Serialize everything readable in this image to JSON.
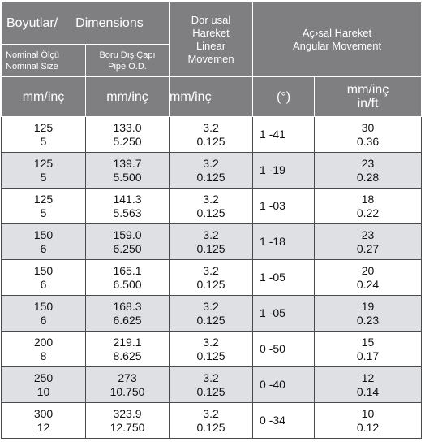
{
  "header": {
    "boyutlar": "Boyutlar/",
    "dimensions": "Dimensions",
    "nominal_tr": "Nominal Ölçü",
    "nominal_en": "Nominal Size",
    "pipe_tr": "Boru Dış Çapı",
    "pipe_en": "Pipe O.D.",
    "linear_1": "Dor usal",
    "linear_2": "Hareket",
    "linear_3": "Linear",
    "linear_4": "Movemen",
    "angular_tr": "Aç›sal Hareket",
    "angular_en": "Angular Movement",
    "units": [
      "mm/inç",
      "mm/inç",
      "mm/inç",
      "(°)"
    ],
    "unit_last_1": "mm/inç",
    "unit_last_2": "in/ft"
  },
  "rows": [
    {
      "nominal": [
        "125",
        "5"
      ],
      "od": [
        "133.0",
        "5.250"
      ],
      "linear": [
        "3.2",
        "0.125"
      ],
      "angle": "1 -41",
      "mm": [
        "30",
        "0.36"
      ]
    },
    {
      "nominal": [
        "125",
        "5"
      ],
      "od": [
        "139.7",
        "5.500"
      ],
      "linear": [
        "3.2",
        "0.125"
      ],
      "angle": "1 -19",
      "mm": [
        "23",
        "0.28"
      ]
    },
    {
      "nominal": [
        "125",
        "5"
      ],
      "od": [
        "141.3",
        "5.563"
      ],
      "linear": [
        "3.2",
        "0.125"
      ],
      "angle": "1 -03",
      "mm": [
        "18",
        "0.22"
      ]
    },
    {
      "nominal": [
        "150",
        "6"
      ],
      "od": [
        "159.0",
        "6.250"
      ],
      "linear": [
        "3.2",
        "0.125"
      ],
      "angle": "1 -18",
      "mm": [
        "23",
        "0.27"
      ]
    },
    {
      "nominal": [
        "150",
        "6"
      ],
      "od": [
        "165.1",
        "6.500"
      ],
      "linear": [
        "3.2",
        "0.125"
      ],
      "angle": "1 -05",
      "mm": [
        "20",
        "0.24"
      ]
    },
    {
      "nominal": [
        "150",
        "6"
      ],
      "od": [
        "168.3",
        "6.625"
      ],
      "linear": [
        "3.2",
        "0.125"
      ],
      "angle": "1 -05",
      "mm": [
        "19",
        "0.23"
      ]
    },
    {
      "nominal": [
        "200",
        "8"
      ],
      "od": [
        "219.1",
        "8.625"
      ],
      "linear": [
        "3.2",
        "0.125"
      ],
      "angle": "0 -50",
      "mm": [
        "15",
        "0.17"
      ]
    },
    {
      "nominal": [
        "250",
        "10"
      ],
      "od": [
        "273",
        "10.750"
      ],
      "linear": [
        "3.2",
        "0.125"
      ],
      "angle": "0 -40",
      "mm": [
        "12",
        "0.14"
      ]
    },
    {
      "nominal": [
        "300",
        "12"
      ],
      "od": [
        "323.9",
        "12.750"
      ],
      "linear": [
        "3.2",
        "0.125"
      ],
      "angle": "0 -34",
      "mm": [
        "10",
        "0.12"
      ]
    }
  ],
  "colors": {
    "header_bg": "#7f7f82",
    "shade_bg": "#dfe0e4"
  }
}
